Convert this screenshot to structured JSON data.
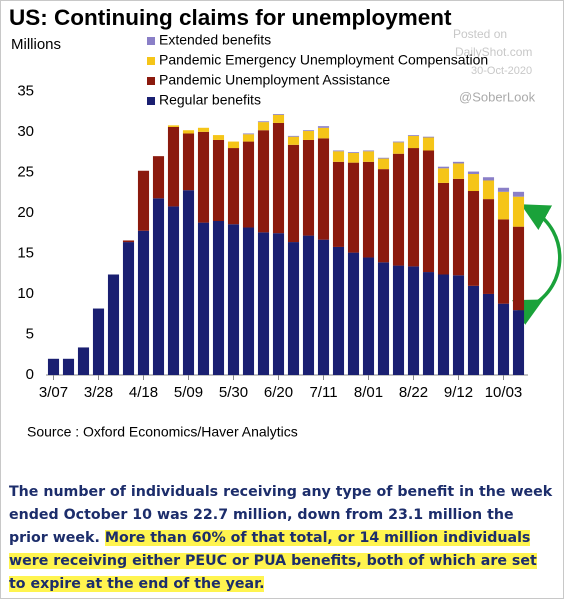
{
  "title": "US: Continuing claims for unemployment",
  "watermark": [
    "Posted on",
    "DailyShot.com",
    "30-Oct-2020"
  ],
  "handle": "@SoberLook",
  "source": "Source : Oxford Economics/Haver Analytics",
  "note": {
    "text": "The number of individuals receiving any type of benefit in the week ended October 10 was 22.7 million, down from 23.1 million the prior week.",
    "highlight": "More than 60% of that total, or 14 million individuals were receiving either PEUC or PUA benefits, both of which are set to expire at the end of the year."
  },
  "chart_data": {
    "type": "stacked_bar",
    "y_label": "Millions",
    "categories": [
      "3/07",
      null,
      null,
      "3/28",
      null,
      null,
      "4/18",
      null,
      null,
      "5/09",
      null,
      null,
      "5/30",
      null,
      null,
      "6/20",
      null,
      null,
      "7/11",
      null,
      null,
      "8/01",
      null,
      null,
      "8/22",
      null,
      null,
      "9/12",
      null,
      null,
      "10/03",
      null
    ],
    "series": [
      {
        "name": "Regular benefits",
        "color": "#1a1f71",
        "values": [
          2.0,
          2.0,
          3.4,
          8.2,
          12.4,
          16.4,
          17.8,
          21.8,
          20.8,
          22.8,
          18.8,
          19.0,
          18.6,
          18.2,
          17.6,
          17.5,
          16.4,
          17.2,
          16.7,
          15.8,
          15.1,
          14.5,
          13.9,
          13.5,
          13.4,
          12.7,
          12.4,
          12.3,
          11.0,
          10.0,
          8.8,
          8.0
        ]
      },
      {
        "name": "Pandemic Unemployment Assistance",
        "color": "#8b1a0e",
        "values": [
          0,
          0,
          0,
          0,
          0,
          0.2,
          7.4,
          5.2,
          9.8,
          7.0,
          11.2,
          10.0,
          9.4,
          10.6,
          12.6,
          13.6,
          12.0,
          11.8,
          12.5,
          10.5,
          11.1,
          11.8,
          11.5,
          13.8,
          14.6,
          15.0,
          11.3,
          11.9,
          11.7,
          11.7,
          10.4,
          10.3
        ]
      },
      {
        "name": "Pandemic Emergency Unemployment Compensation",
        "color": "#f5c518",
        "values": [
          0,
          0,
          0,
          0,
          0,
          0,
          0,
          0,
          0.2,
          0.4,
          0.5,
          0.6,
          0.8,
          0.9,
          1.0,
          1.0,
          1.0,
          1.1,
          1.3,
          1.3,
          1.2,
          1.3,
          1.3,
          1.4,
          1.5,
          1.6,
          1.8,
          1.9,
          2.1,
          2.3,
          3.4,
          3.7
        ]
      },
      {
        "name": "Extended benefits",
        "color": "#8a7fc7",
        "values": [
          0,
          0,
          0,
          0,
          0,
          0,
          0,
          0,
          0,
          0,
          0,
          0,
          0,
          0.1,
          0.1,
          0.1,
          0.1,
          0.1,
          0.2,
          0.1,
          0.1,
          0.1,
          0.1,
          0.1,
          0.1,
          0.1,
          0.2,
          0.2,
          0.3,
          0.4,
          0.5,
          0.6
        ]
      }
    ],
    "ylim": [
      0,
      38
    ],
    "yticks": [
      0,
      5,
      10,
      15,
      20,
      25,
      30,
      35
    ],
    "grid": false,
    "legend": "top-right"
  }
}
